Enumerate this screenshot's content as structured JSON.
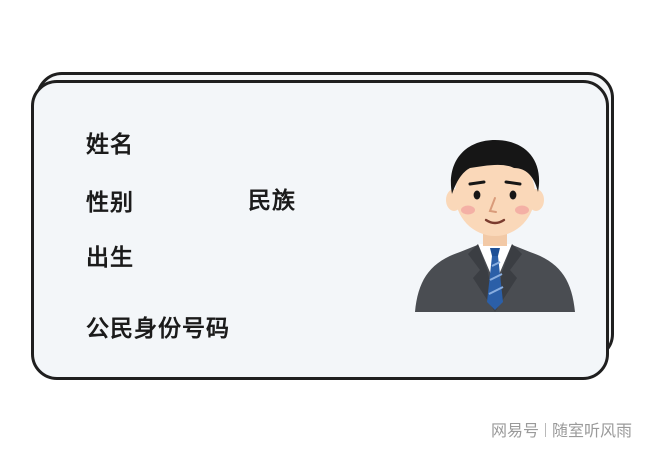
{
  "card": {
    "fields": {
      "name_label": "姓名",
      "gender_label": "性别",
      "ethnicity_label": "民族",
      "birth_label": "出生",
      "id_number_label": "公民身份号码"
    },
    "photo_icon": "man-in-suit-avatar-icon"
  },
  "watermark": {
    "source": "网易号",
    "author": "随室听风雨"
  },
  "colors": {
    "card_fill": "#f3f6f9",
    "card_border": "#1f1f1f",
    "label_text": "#1b1b1b",
    "suit": "#4a4d52",
    "tie": "#2b5fa8",
    "skin": "#fad8b9"
  }
}
